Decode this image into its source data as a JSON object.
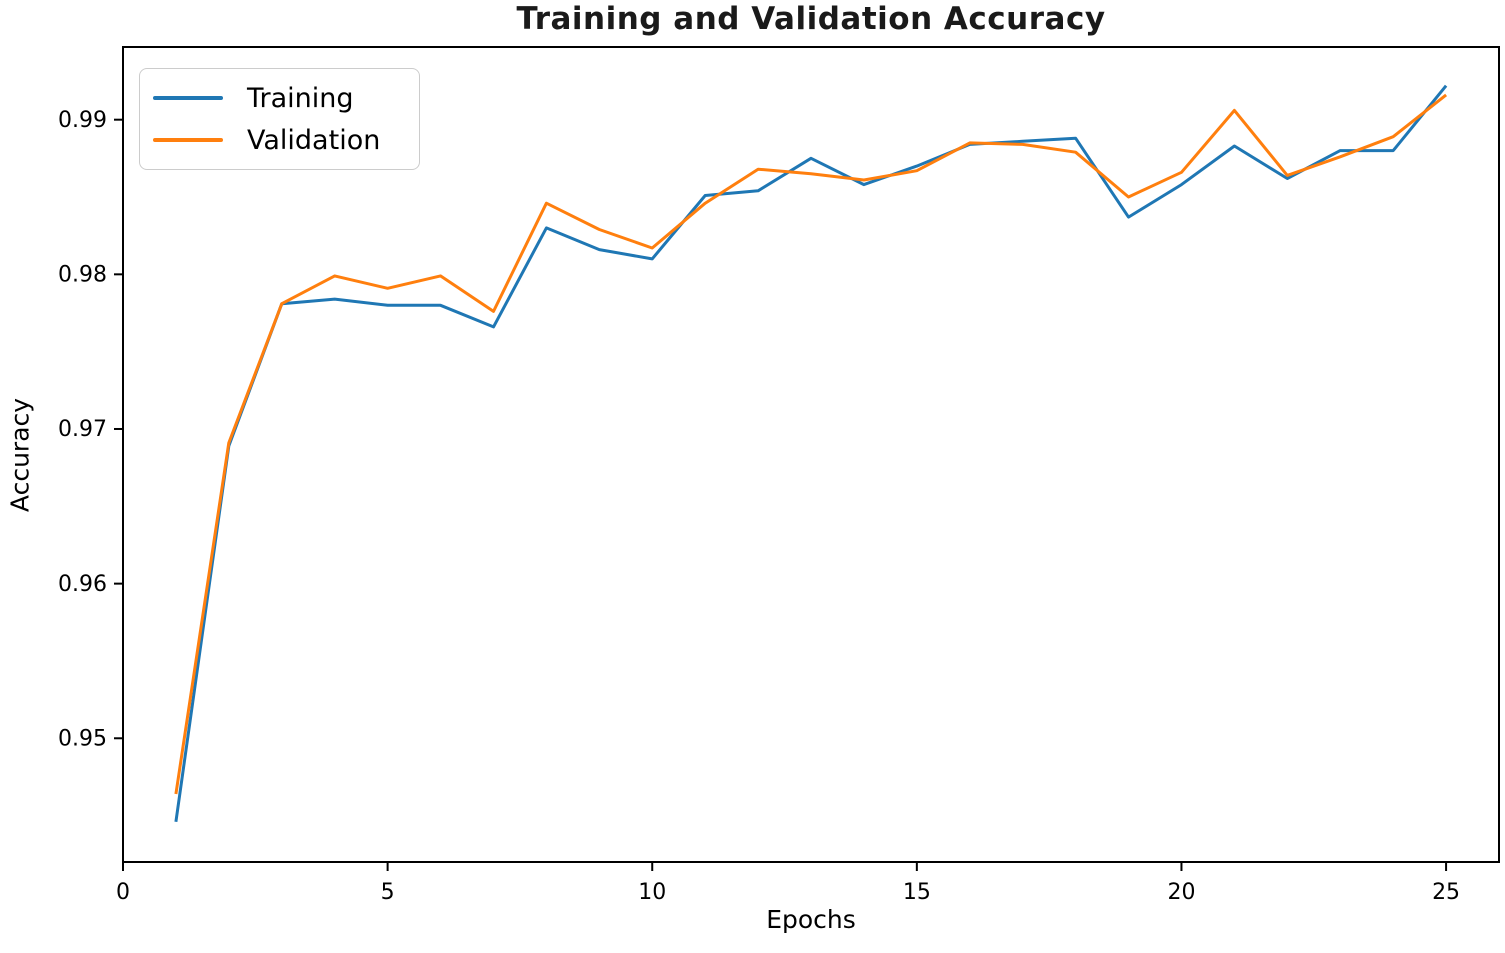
{
  "figure": {
    "title": "Training and Validation Accuracy",
    "xlabel": "Epochs",
    "ylabel": "Accuracy"
  },
  "legend": {
    "items": [
      {
        "label": "Training",
        "color": "#1f77b4"
      },
      {
        "label": "Validation",
        "color": "#ff7f0e"
      }
    ]
  },
  "chart_data": {
    "type": "line",
    "title": "Training and Validation Accuracy",
    "xlabel": "Epochs",
    "ylabel": "Accuracy",
    "x": [
      1,
      2,
      3,
      4,
      5,
      6,
      7,
      8,
      9,
      10,
      11,
      12,
      13,
      14,
      15,
      16,
      17,
      18,
      19,
      20,
      21,
      22,
      23,
      24,
      25
    ],
    "series": [
      {
        "name": "Training",
        "color": "#1f77b4",
        "values": [
          0.9446,
          0.9689,
          0.9781,
          0.9784,
          0.978,
          0.978,
          0.9766,
          0.983,
          0.9816,
          0.981,
          0.9851,
          0.9854,
          0.9875,
          0.9858,
          0.987,
          0.9884,
          0.9886,
          0.9888,
          0.9837,
          0.9858,
          0.9883,
          0.9862,
          0.988,
          0.988,
          0.9922
        ]
      },
      {
        "name": "Validation",
        "color": "#ff7f0e",
        "values": [
          0.9464,
          0.9691,
          0.9781,
          0.9799,
          0.9791,
          0.9799,
          0.9776,
          0.9846,
          0.9829,
          0.9817,
          0.9846,
          0.9868,
          0.9865,
          0.9861,
          0.9867,
          0.9885,
          0.9884,
          0.9879,
          0.985,
          0.9866,
          0.9906,
          0.9864,
          0.9876,
          0.9889,
          0.9916
        ]
      }
    ],
    "xlim": [
      0,
      26
    ],
    "ylim": [
      0.942,
      0.9947
    ],
    "xticks": [
      0,
      5,
      10,
      15,
      20,
      25
    ],
    "yticks": [
      0.95,
      0.96,
      0.97,
      0.98,
      0.99
    ],
    "grid": false,
    "legend_position": "upper left",
    "axis_color": "#000000",
    "line_width": 3
  }
}
